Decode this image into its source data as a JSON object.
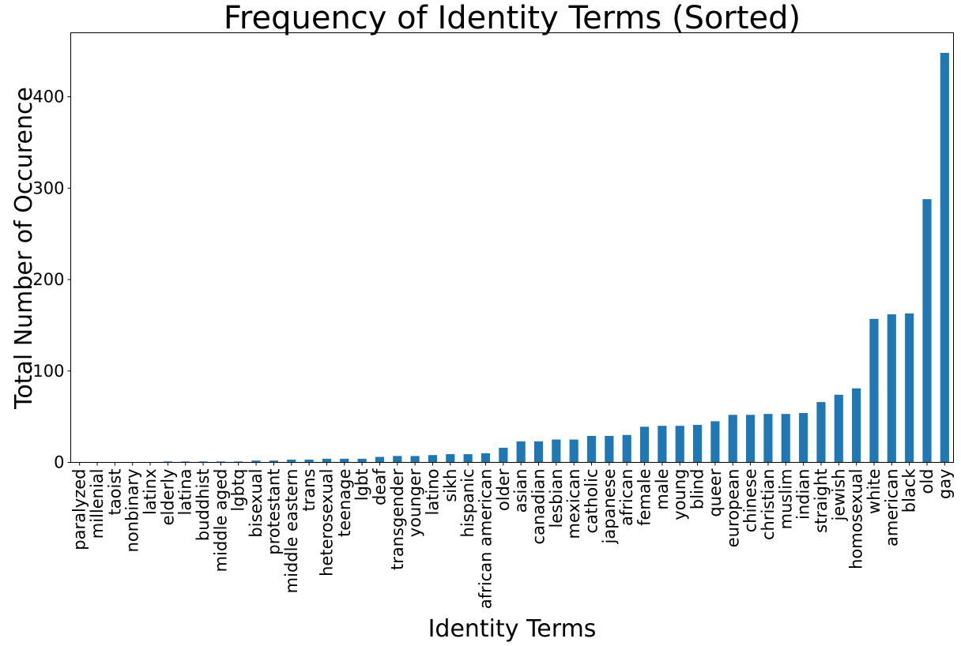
{
  "chart_data": {
    "type": "bar",
    "title": "Frequency of Identity Terms (Sorted)",
    "xlabel": "Identity Terms",
    "ylabel": "Total Number of Occurence",
    "ylim": [
      0,
      470
    ],
    "yticks": [
      0,
      100,
      200,
      300,
      400
    ],
    "grid": false,
    "legend": "none",
    "bar_color": "#1f77b4",
    "categories": [
      "paralyzed",
      "millenial",
      "taoist",
      "nonbinary",
      "latinx",
      "elderly",
      "latina",
      "buddhist",
      "middle aged",
      "lgbtq",
      "bisexual",
      "protestant",
      "middle eastern",
      "trans",
      "heterosexual",
      "teenage",
      "lgbt",
      "deaf",
      "transgender",
      "younger",
      "latino",
      "sikh",
      "hispanic",
      "african american",
      "older",
      "asian",
      "canadian",
      "lesbian",
      "mexican",
      "catholic",
      "japanese",
      "african",
      "female",
      "male",
      "young",
      "blind",
      "queer",
      "european",
      "chinese",
      "christian",
      "muslim",
      "indian",
      "straight",
      "jewish",
      "homosexual",
      "white",
      "american",
      "black",
      "old",
      "gay"
    ],
    "values": [
      0,
      0,
      0,
      0,
      0,
      1,
      1,
      1,
      1,
      1,
      2,
      2,
      3,
      3,
      4,
      4,
      4,
      6,
      7,
      7,
      8,
      9,
      9,
      10,
      16,
      23,
      23,
      25,
      25,
      29,
      29,
      30,
      39,
      40,
      40,
      41,
      45,
      52,
      52,
      53,
      53,
      54,
      66,
      74,
      81,
      157,
      162,
      163,
      288,
      448
    ]
  }
}
